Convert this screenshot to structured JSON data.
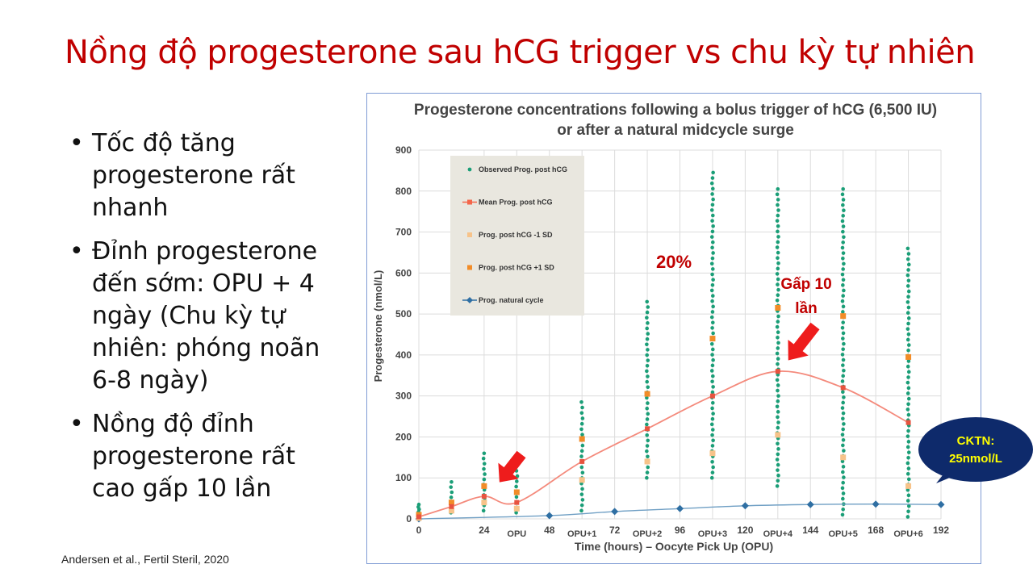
{
  "slide": {
    "title": "Nồng độ progesterone sau hCG trigger vs chu kỳ tự nhiên",
    "bullets": [
      "Tốc độ tăng progesterone rất nhanh",
      "Đỉnh progesterone đến sớm: OPU + 4 ngày (Chu kỳ tự nhiên: phóng noãn 6-8 ngày)",
      "Nồng độ đỉnh progesterone rất cao gấp 10 lần"
    ],
    "citation": "Andersen et al., Fertil Steril, 2020"
  },
  "annotations": {
    "pct_label": "20%",
    "fold_label_line1": "Gấp 10",
    "fold_label_line2": "lần",
    "callout_line1": "CKTN:",
    "callout_line2": "25nmol/L",
    "colors": {
      "red": "#c00000",
      "arrow": "#ee1c1c",
      "callout_bg": "#0e2a6b",
      "callout_text": "#ffff00"
    }
  },
  "chart_data": {
    "type": "scatter",
    "title_line1": "Progesterone concentrations following a bolus trigger of hCG (6,500 IU)",
    "title_line2": "or after a natural midcycle surge",
    "xlabel": "Time (hours) – Oocyte Pick Up (OPU)",
    "ylabel": "Progesterone (nmol/L)",
    "xlim": [
      0,
      192
    ],
    "ylim": [
      0,
      900
    ],
    "yticks": [
      0,
      100,
      200,
      300,
      400,
      500,
      600,
      700,
      800,
      900
    ],
    "xticks": [
      {
        "x": 0,
        "label": "0"
      },
      {
        "x": 24,
        "label": "24"
      },
      {
        "x": 48,
        "label": "48"
      },
      {
        "x": 72,
        "label": "72"
      },
      {
        "x": 96,
        "label": "96"
      },
      {
        "x": 120,
        "label": "120"
      },
      {
        "x": 144,
        "label": "144"
      },
      {
        "x": 168,
        "label": "168"
      },
      {
        "x": 192,
        "label": "192"
      }
    ],
    "opu_ticks": [
      {
        "x": 36,
        "label": "OPU"
      },
      {
        "x": 60,
        "label": "OPU+1"
      },
      {
        "x": 84,
        "label": "OPU+2"
      },
      {
        "x": 108,
        "label": "OPU+3"
      },
      {
        "x": 132,
        "label": "OPU+4"
      },
      {
        "x": 156,
        "label": "OPU+5"
      },
      {
        "x": 180,
        "label": "OPU+6"
      }
    ],
    "grid": true,
    "legend_position": "top-left",
    "legend": [
      {
        "label": "Observed Prog. post hCG",
        "color": "#1a9e77",
        "marker": "dot"
      },
      {
        "label": "Mean Prog. post hCG",
        "color": "#f4664a",
        "marker": "square-line"
      },
      {
        "label": "Prog. post hCG -1 SD",
        "color": "#f7c38a",
        "marker": "square"
      },
      {
        "label": "Prog. post hCG +1 SD",
        "color": "#f28c28",
        "marker": "square"
      },
      {
        "label": "Prog. natural cycle",
        "color": "#2f6fa3",
        "marker": "diamond-line"
      }
    ],
    "mean_post_hcg": {
      "x": [
        0,
        12,
        24,
        36,
        60,
        84,
        108,
        132,
        156,
        180
      ],
      "y": [
        5,
        30,
        55,
        40,
        140,
        220,
        300,
        360,
        320,
        235
      ]
    },
    "minus_1sd": {
      "x": [
        0,
        12,
        24,
        36,
        60,
        84,
        108,
        132,
        156,
        180
      ],
      "y": [
        2,
        20,
        40,
        25,
        95,
        140,
        160,
        205,
        150,
        80
      ]
    },
    "plus_1sd": {
      "x": [
        0,
        12,
        24,
        36,
        60,
        84,
        108,
        132,
        156,
        180
      ],
      "y": [
        10,
        40,
        80,
        65,
        195,
        305,
        440,
        515,
        495,
        395
      ]
    },
    "natural_cycle": {
      "x": [
        0,
        48,
        72,
        96,
        120,
        144,
        168,
        192
      ],
      "y": [
        0,
        8,
        18,
        25,
        32,
        35,
        36,
        35
      ]
    },
    "observed_post_hcg": [
      {
        "x": 0,
        "min": 0,
        "max": 35
      },
      {
        "x": 12,
        "min": 15,
        "max": 90
      },
      {
        "x": 24,
        "min": 20,
        "max": 160
      },
      {
        "x": 36,
        "min": 15,
        "max": 130
      },
      {
        "x": 60,
        "min": 20,
        "max": 285
      },
      {
        "x": 84,
        "min": 100,
        "max": 530
      },
      {
        "x": 108,
        "min": 100,
        "max": 845
      },
      {
        "x": 132,
        "min": 80,
        "max": 805
      },
      {
        "x": 156,
        "min": 10,
        "max": 805
      },
      {
        "x": 180,
        "min": 5,
        "max": 660
      }
    ]
  }
}
